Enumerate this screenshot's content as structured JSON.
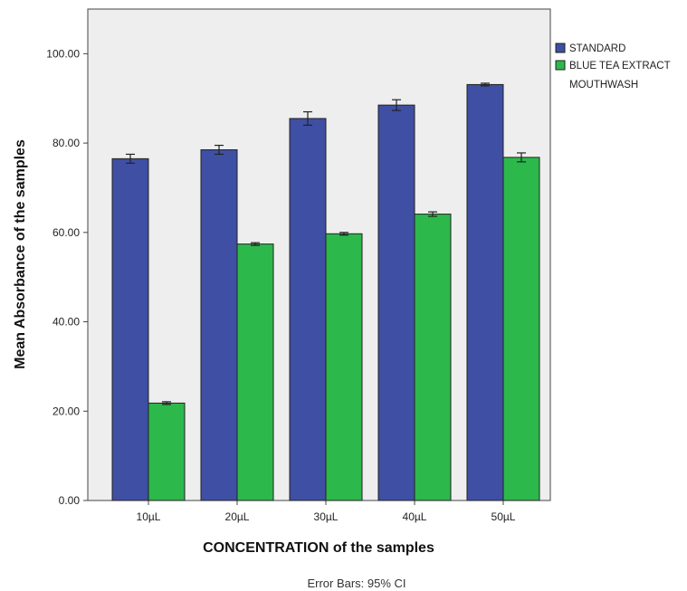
{
  "chart_data": {
    "type": "bar",
    "title": "",
    "xlabel": "CONCENTRATION of the samples",
    "ylabel": "Mean Absorbance of the samples",
    "categories": [
      "10µL",
      "20µL",
      "30µL",
      "40µL",
      "50µL"
    ],
    "ylim": [
      0,
      110
    ],
    "yticks": [
      0,
      20,
      40,
      60,
      80,
      100
    ],
    "ytick_labels": [
      "0.00",
      "20.00",
      "40.00",
      "60.00",
      "80.00",
      "100.00"
    ],
    "grid": false,
    "legend_position": "right",
    "series": [
      {
        "name": "STANDARD",
        "color": "#3F4FA3",
        "values": [
          76.5,
          78.5,
          85.5,
          88.5,
          93.1
        ],
        "ci_low": [
          75.5,
          77.5,
          84.0,
          87.3,
          92.8
        ],
        "ci_high": [
          77.5,
          79.5,
          87.0,
          89.7,
          93.4
        ]
      },
      {
        "name": "BLUE TEA EXTRACT MOUTHWASH",
        "legend_lines": [
          "BLUE TEA EXTRACT",
          "MOUTHWASH"
        ],
        "color": "#2DB84B",
        "values": [
          21.8,
          57.4,
          59.7,
          64.1,
          76.8
        ],
        "ci_low": [
          21.5,
          57.1,
          59.4,
          63.6,
          75.8
        ],
        "ci_high": [
          22.1,
          57.7,
          60.0,
          64.6,
          77.8
        ]
      }
    ],
    "annotation": "Error Bars: 95% CI",
    "plot_background": "#EEEEEE"
  }
}
